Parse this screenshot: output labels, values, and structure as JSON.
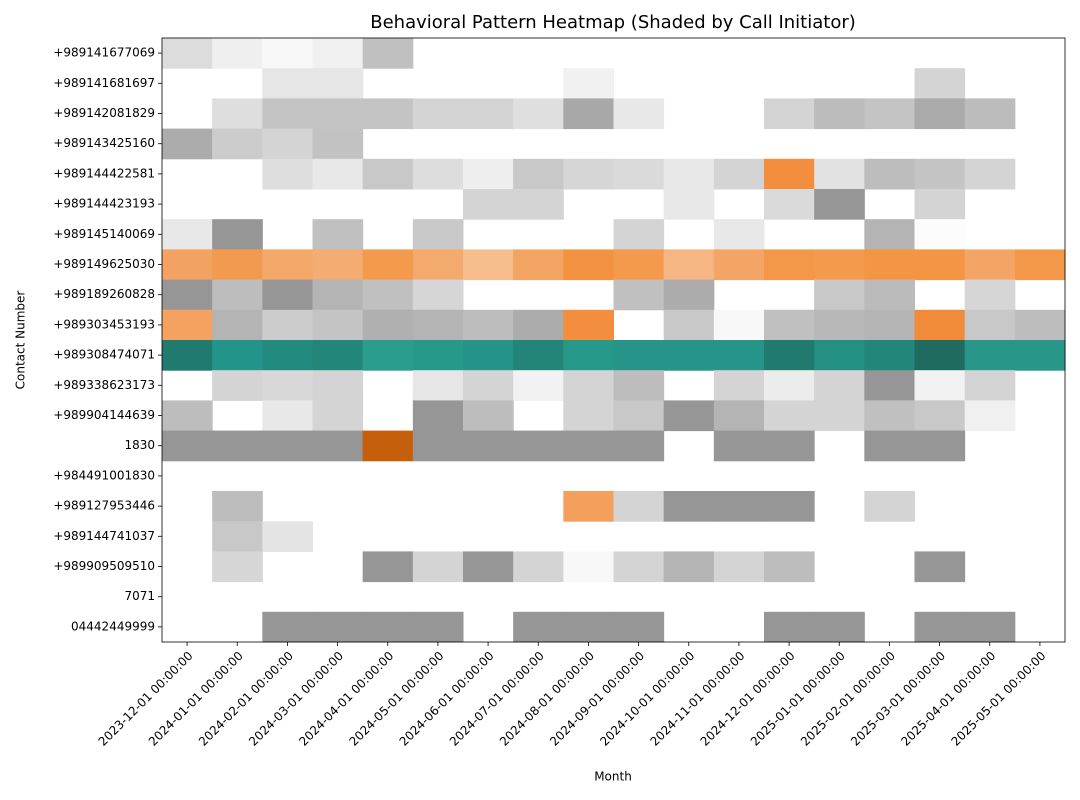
{
  "chart_data": {
    "type": "heatmap",
    "title": "Behavioral Pattern Heatmap (Shaded by Call Initiator)",
    "x_label": "Month",
    "y_label": "Contact Number",
    "categories": [
      "2023-12-01 00:00:00",
      "2024-01-01 00:00:00",
      "2024-02-01 00:00:00",
      "2024-03-01 00:00:00",
      "2024-04-01 00:00:00",
      "2024-05-01 00:00:00",
      "2024-06-01 00:00:00",
      "2024-07-01 00:00:00",
      "2024-08-01 00:00:00",
      "2024-09-01 00:00:00",
      "2024-10-01 00:00:00",
      "2024-11-01 00:00:00",
      "2024-12-01 00:00:00",
      "2025-01-01 00:00:00",
      "2025-02-01 00:00:00",
      "2025-03-01 00:00:00",
      "2025-04-01 00:00:00",
      "2025-05-01 00:00:00"
    ],
    "rows": [
      "+989141677069",
      "+989141681697",
      "+989142081829",
      "+989143425160",
      "+989144422581",
      "+989144423193",
      "+989145140069",
      "+989149625030",
      "+989189260828",
      "+989303453193",
      "+989308474071",
      "+989338623173",
      "+989904144639",
      "1830",
      "+984491001830",
      "+989127953446",
      "+989144741037",
      "+989909509510",
      "7071",
      "04442449999"
    ],
    "colors": [
      [
        "#dcdcdc",
        "#efefef",
        "#f8f8f8",
        "#f0f0f0",
        "#c0c0c0",
        null,
        null,
        null,
        null,
        null,
        null,
        null,
        null,
        null,
        null,
        null,
        null,
        null
      ],
      [
        null,
        null,
        "#e6e6e6",
        "#e6e6e6",
        null,
        null,
        null,
        null,
        "#f1f1f1",
        null,
        null,
        null,
        null,
        null,
        null,
        "#d4d4d4",
        null,
        null
      ],
      [
        null,
        "#dedede",
        "#c4c4c4",
        "#c4c4c4",
        "#c4c4c4",
        "#d4d4d4",
        "#d4d4d4",
        "#dfdfdf",
        "#a8a8a8",
        "#e8e8e8",
        null,
        null,
        "#d4d4d4",
        "#bcbcbc",
        "#c4c4c4",
        "#aaaaaa",
        "#bcbcbc",
        null
      ],
      [
        "#acacac",
        "#cccccc",
        "#d4d4d4",
        "#c2c2c2",
        null,
        null,
        null,
        null,
        null,
        null,
        null,
        null,
        null,
        null,
        null,
        null,
        null,
        null
      ],
      [
        null,
        null,
        "#dedede",
        "#e8e8e8",
        "#c8c8c8",
        "#dddddd",
        "#eeeeee",
        "#c8c8c8",
        "#d6d6d6",
        "#dadada",
        "#e8e8e8",
        "#d4d4d4",
        "#f28e3e",
        "#e2e2e2",
        "#bdbdbd",
        "#c4c4c4",
        "#d4d4d4",
        null
      ],
      [
        null,
        null,
        null,
        null,
        null,
        null,
        "#d4d4d4",
        "#d4d4d4",
        null,
        null,
        "#e8e8e8",
        null,
        "#dadada",
        "#969696",
        null,
        "#d4d4d4",
        null,
        null
      ],
      [
        "#e8e8e8",
        "#969696",
        null,
        "#c0c0c0",
        null,
        "#c8c8c8",
        null,
        null,
        null,
        "#d4d4d4",
        null,
        "#e8e8e8",
        null,
        null,
        "#b4b4b4",
        "#fcfcfc",
        null,
        null
      ],
      [
        "#f4a261",
        "#f29b50",
        "#f4a86a",
        "#f5ac72",
        "#f39a4c",
        "#f4aa6c",
        "#f6bd8d",
        "#f4a462",
        "#f29240",
        "#f39a4c",
        "#f5b684",
        "#f4a566",
        "#f39849",
        "#f39a4c",
        "#f39543",
        "#f39543",
        "#f4a565",
        "#f39849"
      ],
      [
        "#969696",
        "#bdbdbd",
        "#969696",
        "#b4b4b4",
        "#c0c0c0",
        "#d6d6d6",
        null,
        null,
        null,
        "#c0c0c0",
        "#acacac",
        null,
        null,
        "#c8c8c8",
        "#bbbbbb",
        null,
        "#d6d6d6",
        null
      ],
      [
        "#f4a261",
        "#b4b4b4",
        "#cccccc",
        "#c4c4c4",
        "#b0b0b0",
        "#b4b4b4",
        "#bdbdbd",
        "#acacac",
        "#f28e3e",
        null,
        "#c8c8c8",
        "#f8f8f8",
        "#c0c0c0",
        "#b8b8b8",
        "#b4b4b4",
        "#f28b39",
        "#c8c8c8",
        "#bdbdbd"
      ],
      [
        "#217a6e",
        "#23948a",
        "#228a7e",
        "#22867a",
        "#2a9d8f",
        "#27998b",
        "#259488",
        "#238478",
        "#27998b",
        "#269488",
        "#269488",
        "#269488",
        "#217a6e",
        "#248f83",
        "#22867a",
        "#1f6b5f",
        "#289789",
        "#289789"
      ],
      [
        null,
        "#d4d4d4",
        "#d8d8d8",
        "#d4d4d4",
        null,
        "#e6e6e6",
        "#d4d4d4",
        "#f2f2f2",
        "#d4d4d4",
        "#bdbdbd",
        null,
        "#d4d4d4",
        "#ececec",
        "#d4d4d4",
        "#969696",
        "#f2f2f2",
        "#d4d4d4",
        null
      ],
      [
        "#bdbdbd",
        null,
        "#e8e8e8",
        "#d4d4d4",
        null,
        "#969696",
        "#bdbdbd",
        null,
        "#d4d4d4",
        "#c8c8c8",
        "#969696",
        "#b4b4b4",
        "#d4d4d4",
        "#d4d4d4",
        "#c0c0c0",
        "#c8c8c8",
        "#f0f0f0",
        null
      ],
      [
        "#969696",
        "#969696",
        "#969696",
        "#969696",
        "#c65f0c",
        "#969696",
        "#969696",
        "#969696",
        "#969696",
        "#969696",
        null,
        "#969696",
        "#969696",
        null,
        "#969696",
        "#969696",
        null,
        null
      ],
      [
        null,
        null,
        null,
        null,
        null,
        null,
        null,
        null,
        null,
        null,
        null,
        null,
        null,
        null,
        null,
        null,
        null,
        null
      ],
      [
        null,
        "#bdbdbd",
        null,
        null,
        null,
        null,
        null,
        null,
        "#f4a05c",
        "#d4d4d4",
        "#969696",
        "#969696",
        "#969696",
        null,
        "#d4d4d4",
        null,
        null,
        null
      ],
      [
        null,
        "#c8c8c8",
        "#e4e4e4",
        null,
        null,
        null,
        null,
        null,
        null,
        null,
        null,
        null,
        null,
        null,
        null,
        null,
        null,
        null
      ],
      [
        null,
        "#d6d6d6",
        null,
        null,
        "#969696",
        "#d4d4d4",
        "#969696",
        "#d4d4d4",
        "#f8f8f8",
        "#d4d4d4",
        "#b4b4b4",
        "#d4d4d4",
        "#bdbdbd",
        null,
        null,
        "#969696",
        null,
        null
      ],
      [
        null,
        null,
        null,
        null,
        null,
        null,
        null,
        null,
        null,
        null,
        null,
        null,
        null,
        null,
        null,
        null,
        null,
        null
      ],
      [
        null,
        null,
        "#969696",
        "#969696",
        "#969696",
        "#969696",
        null,
        "#969696",
        "#969696",
        "#969696",
        null,
        null,
        "#969696",
        "#969696",
        null,
        "#969696",
        "#969696",
        null
      ]
    ]
  }
}
